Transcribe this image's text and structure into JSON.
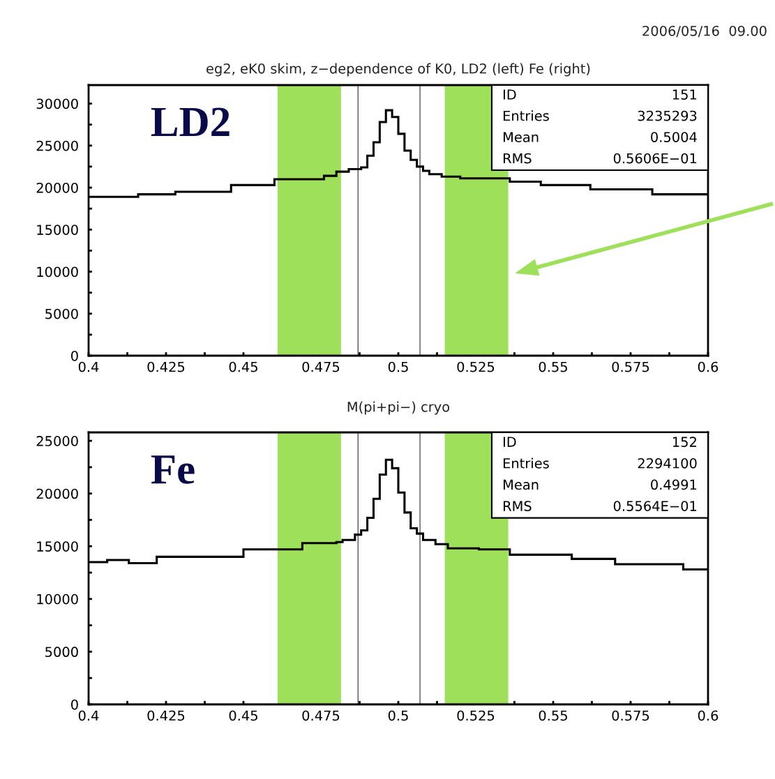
{
  "chart_data": [
    {
      "type": "histogram",
      "title": "eg2, eK0 skim, z−dependence of K0, LD2 (left) Fe (right)",
      "xlabel": "M(pi+pi−) cryo",
      "bins": [
        0.4,
        0.416,
        0.428,
        0.446,
        0.46,
        0.476,
        0.48,
        0.484,
        0.488,
        0.49,
        0.492,
        0.494,
        0.496,
        0.498,
        0.5,
        0.502,
        0.504,
        0.506,
        0.508,
        0.51,
        0.514,
        0.52,
        0.536,
        0.546,
        0.562,
        0.582,
        0.6
      ],
      "values": [
        18900,
        19200,
        19500,
        20300,
        21000,
        21400,
        21900,
        22200,
        22400,
        23800,
        25400,
        27800,
        29200,
        28400,
        26400,
        24400,
        23300,
        22500,
        22000,
        21600,
        21300,
        21100,
        20700,
        20300,
        19800,
        19200
      ],
      "color": "#000000",
      "xlim": [
        0.4,
        0.6
      ],
      "xticks": [
        0.4,
        {
          "value": 0.4125,
          "label": null
        },
        0.425,
        {
          "value": 0.4375,
          "label": null
        },
        0.45,
        {
          "value": 0.4625,
          "label": null
        },
        0.475,
        {
          "value": 0.4875,
          "label": null
        },
        0.5,
        {
          "value": 0.5125,
          "label": null
        },
        0.525,
        {
          "value": 0.5375,
          "label": null
        },
        0.55,
        {
          "value": 0.5625,
          "label": null
        },
        0.575,
        {
          "value": 0.5875,
          "label": null
        },
        0.6
      ],
      "ylim": [
        0,
        32200
      ],
      "yticks": [
        0,
        {
          "value": 2500,
          "label": null
        },
        5000,
        {
          "value": 7500,
          "label": null
        },
        10000,
        {
          "value": 12500,
          "label": null
        },
        15000,
        {
          "value": 17500,
          "label": null
        },
        20000,
        {
          "value": 22500,
          "label": null
        },
        25000,
        {
          "value": 27500,
          "label": null
        },
        30000
      ],
      "ref_lines": [
        {
          "axis": "x",
          "value": 0.487,
          "color": "#555555"
        },
        {
          "axis": "x",
          "value": 0.507,
          "color": "#555555"
        }
      ],
      "bands": [
        {
          "axis": "x",
          "from": 0.461,
          "to": 0.4815,
          "color": "#9fe05a"
        },
        {
          "axis": "x",
          "from": 0.515,
          "to": 0.5355,
          "color": "#9fe05a"
        }
      ],
      "annotations": [
        "LD2",
        "ID",
        "151",
        "Entries",
        "3235293",
        "Mean",
        "0.5004",
        "RMS",
        "0.5606E−01",
        "2006/05/16  09.00"
      ]
    },
    {
      "type": "histogram",
      "bins": [
        0.4,
        0.406,
        0.413,
        0.422,
        0.45,
        0.469,
        0.48,
        0.482,
        0.486,
        0.488,
        0.49,
        0.492,
        0.494,
        0.496,
        0.498,
        0.5,
        0.502,
        0.504,
        0.506,
        0.508,
        0.512,
        0.516,
        0.526,
        0.536,
        0.556,
        0.57,
        0.592,
        0.6
      ],
      "values": [
        13500,
        13700,
        13400,
        14000,
        14700,
        15300,
        15400,
        15600,
        16100,
        16500,
        17700,
        19500,
        21800,
        23200,
        22400,
        20100,
        18200,
        16700,
        16200,
        15600,
        15200,
        14800,
        14700,
        14200,
        13800,
        13300,
        12800
      ],
      "color": "#000000",
      "xlim": [
        0.4,
        0.6
      ],
      "xticks": [
        0.4,
        {
          "value": 0.4125,
          "label": null
        },
        0.425,
        {
          "value": 0.4375,
          "label": null
        },
        0.45,
        {
          "value": 0.4625,
          "label": null
        },
        0.475,
        {
          "value": 0.4875,
          "label": null
        },
        0.5,
        {
          "value": 0.5125,
          "label": null
        },
        0.525,
        {
          "value": 0.5375,
          "label": null
        },
        0.55,
        {
          "value": 0.5625,
          "label": null
        },
        0.575,
        {
          "value": 0.5875,
          "label": null
        },
        0.6
      ],
      "ylim": [
        0,
        25800
      ],
      "yticks": [
        0,
        {
          "value": 2500,
          "label": null
        },
        5000,
        {
          "value": 7500,
          "label": null
        },
        10000,
        {
          "value": 12500,
          "label": null
        },
        15000,
        {
          "value": 17500,
          "label": null
        },
        20000,
        {
          "value": 22500,
          "label": null
        },
        25000
      ],
      "ref_lines": [
        {
          "axis": "x",
          "value": 0.487,
          "color": "#555555"
        },
        {
          "axis": "x",
          "value": 0.507,
          "color": "#555555"
        }
      ],
      "bands": [
        {
          "axis": "x",
          "from": 0.461,
          "to": 0.4815,
          "color": "#9fe05a"
        },
        {
          "axis": "x",
          "from": 0.515,
          "to": 0.5355,
          "color": "#9fe05a"
        }
      ],
      "annotations": [
        "Fe",
        "ID",
        "152",
        "Entries",
        "2294100",
        "Mean",
        "0.4991",
        "RMS",
        "0.5564E−01"
      ]
    }
  ]
}
